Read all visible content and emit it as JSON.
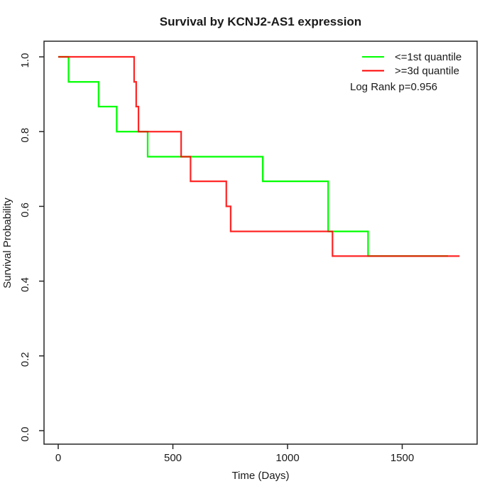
{
  "chart_data": {
    "type": "line",
    "subtype": "kaplan-meier-step",
    "title": "Survival by KCNJ2-AS1 expression",
    "xlabel": "Time (Days)",
    "ylabel": "Survival Probability",
    "xlim": [
      0,
      1750
    ],
    "ylim": [
      0.0,
      1.0
    ],
    "x_ticks": [
      0,
      500,
      1000,
      1500
    ],
    "y_ticks": [
      0.0,
      0.2,
      0.4,
      0.6,
      0.8,
      1.0
    ],
    "grid": false,
    "legend_position": "top-right",
    "annotation": "Log Rank p=0.956",
    "axis_color": "#262626",
    "series": [
      {
        "name": "<=1st quantile",
        "color": "#00FF00",
        "events": [
          [
            0,
            1.0
          ],
          [
            45,
            0.933
          ],
          [
            176,
            0.867
          ],
          [
            255,
            0.8
          ],
          [
            390,
            0.733
          ],
          [
            892,
            0.667
          ],
          [
            1177,
            0.533
          ],
          [
            1351,
            0.467
          ]
        ],
        "end_time": 1700
      },
      {
        "name": ">=3d quantile",
        "color": "#FF0000",
        "events": [
          [
            0,
            1.0
          ],
          [
            331,
            0.933
          ],
          [
            340,
            0.867
          ],
          [
            350,
            0.8
          ],
          [
            536,
            0.733
          ],
          [
            577,
            0.667
          ],
          [
            733,
            0.6
          ],
          [
            752,
            0.533
          ],
          [
            1196,
            0.467
          ]
        ],
        "end_time": 1750
      }
    ]
  }
}
